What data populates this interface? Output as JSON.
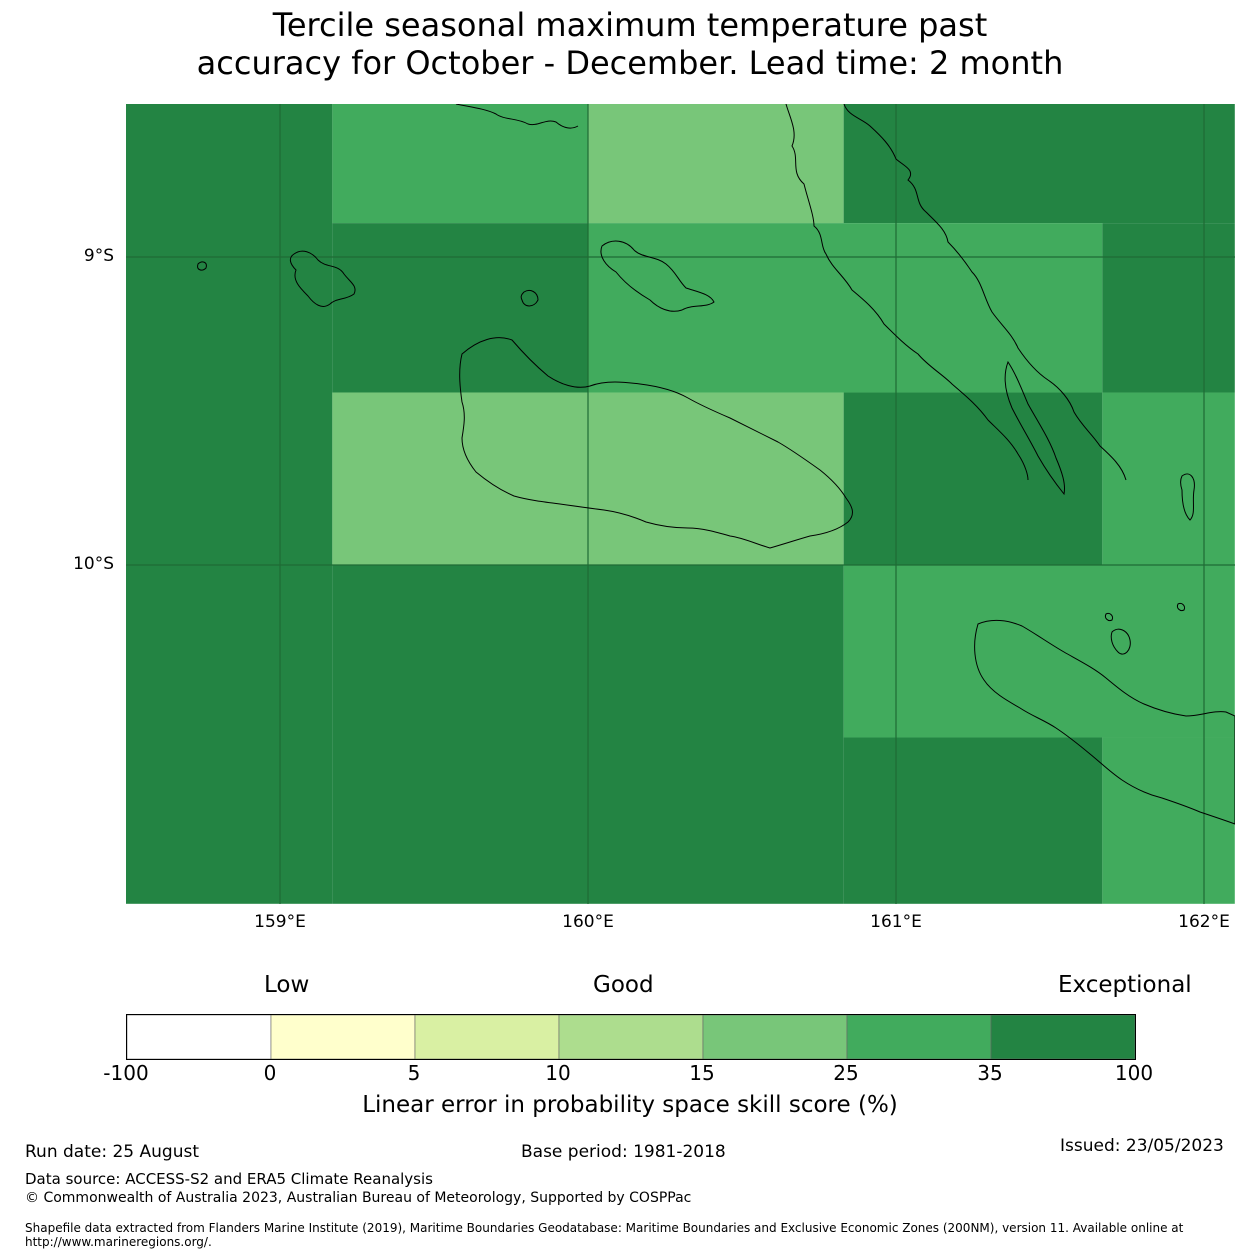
{
  "title_line1": "Tercile seasonal maximum temperature past",
  "title_line2": "accuracy for October - December. Lead time: 2 month",
  "map": {
    "lon_range": [
      158.5,
      162.1
    ],
    "lat_range": [
      -11.1,
      -8.5
    ],
    "x_ticks": [
      "159°E",
      "160°E",
      "161°E",
      "162°E"
    ],
    "y_ticks": [
      "9°S",
      "10°S"
    ],
    "grid_lines": true,
    "legend_bin_values": "index into legend.bins: 0=-100..0, 1=0..5, 2=5..10, 3=10..15, 4=15..25, 5=25..35, 6=35..100",
    "cells": [
      {
        "lon": [
          158.5,
          159.17
        ],
        "lat": [
          -8.5,
          -11.1
        ],
        "bin": 6
      },
      {
        "lon": [
          159.17,
          160.0
        ],
        "lat": [
          -8.5,
          -8.89
        ],
        "bin": 5
      },
      {
        "lon": [
          160.0,
          160.83
        ],
        "lat": [
          -8.5,
          -8.89
        ],
        "bin": 4
      },
      {
        "lon": [
          160.83,
          162.1
        ],
        "lat": [
          -8.5,
          -8.89
        ],
        "bin": 6
      },
      {
        "lon": [
          159.17,
          160.0
        ],
        "lat": [
          -8.89,
          -9.44
        ],
        "bin": 6
      },
      {
        "lon": [
          160.0,
          161.67
        ],
        "lat": [
          -8.89,
          -9.44
        ],
        "bin": 5
      },
      {
        "lon": [
          161.67,
          162.1
        ],
        "lat": [
          -8.89,
          -9.44
        ],
        "bin": 6
      },
      {
        "lon": [
          159.17,
          160.83
        ],
        "lat": [
          -9.44,
          -10.0
        ],
        "bin": 4
      },
      {
        "lon": [
          160.83,
          161.67
        ],
        "lat": [
          -9.44,
          -10.0
        ],
        "bin": 6
      },
      {
        "lon": [
          161.67,
          162.1
        ],
        "lat": [
          -9.44,
          -10.0
        ],
        "bin": 5
      },
      {
        "lon": [
          159.17,
          160.83
        ],
        "lat": [
          -10.0,
          -11.1
        ],
        "bin": 6
      },
      {
        "lon": [
          160.83,
          162.1
        ],
        "lat": [
          -10.0,
          -10.56
        ],
        "bin": 5
      },
      {
        "lon": [
          160.83,
          161.67
        ],
        "lat": [
          -10.56,
          -11.1
        ],
        "bin": 6
      },
      {
        "lon": [
          161.67,
          162.1
        ],
        "lat": [
          -10.56,
          -11.1
        ],
        "bin": 5
      }
    ],
    "coast_color": "#000000",
    "grid_color": "#1f6b35"
  },
  "legend": {
    "head_low": "Low",
    "head_good": "Good",
    "head_exceptional": "Exceptional",
    "tick_labels": [
      "-100",
      "0",
      "5",
      "10",
      "15",
      "25",
      "35",
      "100"
    ],
    "bins": [
      {
        "range": "-100 to 0",
        "color": "#ffffff"
      },
      {
        "range": "0 to 5",
        "color": "#ffffcc"
      },
      {
        "range": "5 to 10",
        "color": "#d9f0a3"
      },
      {
        "range": "10 to 15",
        "color": "#addd8e"
      },
      {
        "range": "15 to 25",
        "color": "#78c679"
      },
      {
        "range": "25 to 35",
        "color": "#41ab5d"
      },
      {
        "range": "35 to 100",
        "color": "#238443"
      }
    ],
    "label": "Linear error in probability space skill score (%)"
  },
  "footer": {
    "run_date": "Run date: 25 August",
    "base_period": "Base period: 1981-2018",
    "issued": "Issued: 23/05/2023",
    "data_source": "Data source: ACCESS-S2 and ERA5 Climate Reanalysis",
    "copyright": "© Commonwealth of Australia 2023, Australian Bureau of Meteorology, Supported by COSPPac",
    "shapefile": "Shapefile data extracted from Flanders Marine Institute (2019), Maritime Boundaries Geodatabase: Maritime Boundaries and Exclusive Economic Zones (200NM), version 11. Available online at http://www.marineregions.org/."
  }
}
